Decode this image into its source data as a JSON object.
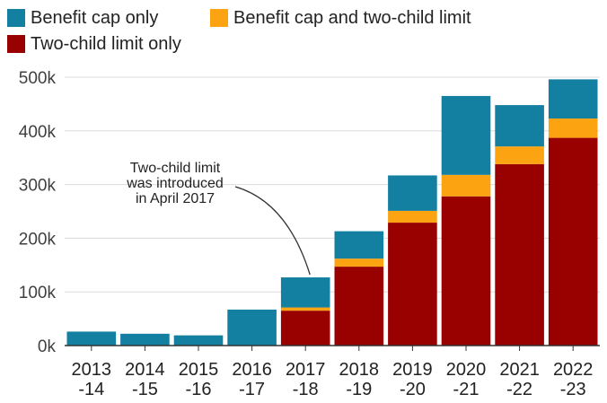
{
  "chart_data": {
    "type": "bar",
    "stacked": true,
    "categories": [
      [
        "2013",
        "-14"
      ],
      [
        "2014",
        "-15"
      ],
      [
        "2015",
        "-16"
      ],
      [
        "2016",
        "-17"
      ],
      [
        "2017",
        "-18"
      ],
      [
        "2018",
        "-19"
      ],
      [
        "2019",
        "-20"
      ],
      [
        "2020",
        "-21"
      ],
      [
        "2021",
        "-22"
      ],
      [
        "2022",
        "-23"
      ]
    ],
    "series": [
      {
        "name": "Two-child limit only",
        "color": "#990000",
        "values": [
          0,
          0,
          0,
          0,
          65000,
          147000,
          229000,
          278000,
          338000,
          387000
        ]
      },
      {
        "name": "Benefit cap and two-child limit",
        "color": "#fca311",
        "values": [
          0,
          0,
          0,
          0,
          6000,
          15000,
          22000,
          40000,
          33000,
          36000
        ]
      },
      {
        "name": "Benefit cap only",
        "color": "#1380a1",
        "values": [
          26000,
          22000,
          19000,
          67000,
          56000,
          51000,
          66000,
          147000,
          77000,
          73000
        ]
      }
    ],
    "legend": {
      "placement": "top-left",
      "order": [
        "Benefit cap only",
        "Benefit cap and two-child limit",
        "Two-child limit only"
      ]
    },
    "y_ticks": [
      {
        "value": 0,
        "label": "0k"
      },
      {
        "value": 100000,
        "label": "100k"
      },
      {
        "value": 200000,
        "label": "200k"
      },
      {
        "value": 300000,
        "label": "300k"
      },
      {
        "value": 400000,
        "label": "400k"
      },
      {
        "value": 500000,
        "label": "500k"
      }
    ],
    "ylim": [
      0,
      500000
    ],
    "grid": true,
    "annotations": [
      {
        "text": [
          "Two-child limit",
          "was introduced",
          "in April 2017"
        ],
        "points_to": "2017-18"
      }
    ]
  }
}
